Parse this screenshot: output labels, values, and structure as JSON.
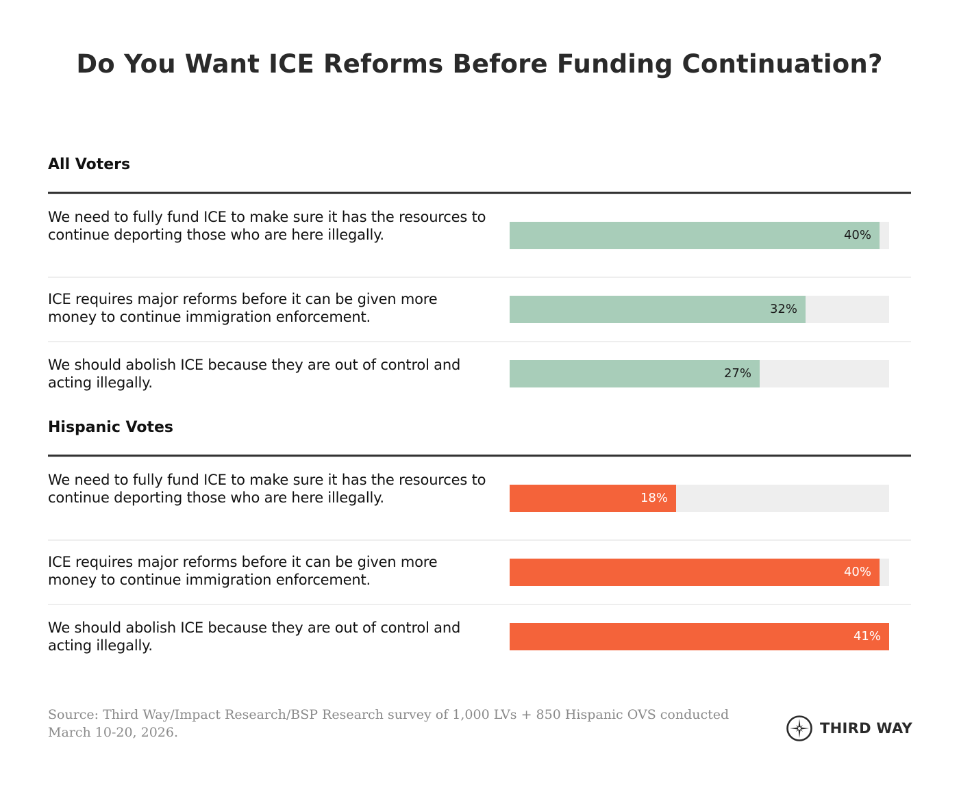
{
  "chart_data": {
    "type": "bar",
    "orientation": "horizontal",
    "title": "Do You Want ICE Reforms Before Funding Continuation?",
    "xlabel": "",
    "ylabel": "",
    "xlim": [
      0,
      41
    ],
    "grid": false,
    "legend": "none",
    "value_suffix": "%",
    "groups": [
      {
        "name": "All Voters",
        "color": "#a8cdb9",
        "label_color": "#1a1a1a",
        "categories": [
          "We need to fully fund ICE to make sure it has the resources to continue deporting those who are here illegally.",
          "ICE requires major reforms before it can be given more money to continue immigration enforcement.",
          "We should abolish ICE because they are out of control and acting illegally."
        ],
        "values": [
          40,
          32,
          27
        ],
        "labels": [
          "40%",
          "32%",
          "27%"
        ]
      },
      {
        "name": "Hispanic Votes",
        "color": "#f4633a",
        "label_color": "#ffffff",
        "categories": [
          "We need to fully fund ICE to make sure it has the resources to continue deporting those who are here illegally.",
          "ICE requires major reforms before it can be given more money to continue immigration enforcement.",
          "We should abolish ICE because they are out of control and acting illegally."
        ],
        "values": [
          18,
          40,
          41
        ],
        "labels": [
          "18%",
          "40%",
          "41%"
        ]
      }
    ],
    "track_color": "#eeeeee"
  },
  "footer": {
    "source_label": "Source:",
    "source_text": " Third Way/Impact Research/BSP Research survey of 1,000 LVs + 850 Hispanic OVS conducted March 10-20, 2026.",
    "logo_icon": "compass-star-icon",
    "logo_text": "THIRD WAY"
  }
}
